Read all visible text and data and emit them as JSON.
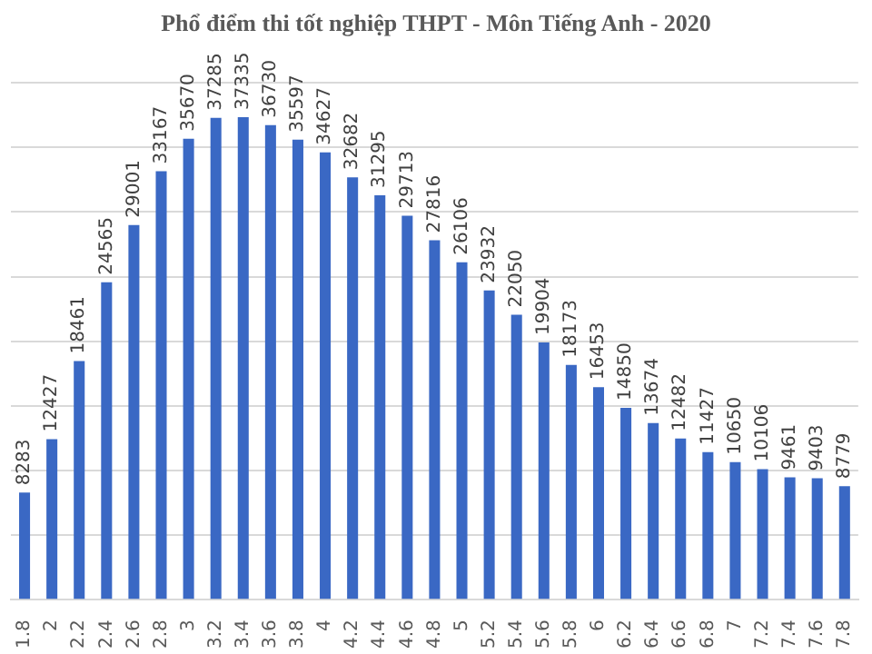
{
  "chart_data": {
    "type": "bar",
    "title": "Phổ điểm thi tốt nghiệp THPT - Môn Tiếng Anh - 2020",
    "categories": [
      "1.8",
      "2",
      "2.2",
      "2.4",
      "2.6",
      "2.8",
      "3",
      "3.2",
      "3.4",
      "3.6",
      "3.8",
      "4",
      "4.2",
      "4.4",
      "4.6",
      "4.8",
      "5",
      "5.2",
      "5.4",
      "5.6",
      "5.8",
      "6",
      "6.2",
      "6.4",
      "6.6",
      "6.8",
      "7",
      "7.2",
      "7.4",
      "7.6",
      "7.8"
    ],
    "values": [
      8283,
      12427,
      18461,
      24565,
      29001,
      33167,
      35670,
      37285,
      37335,
      36730,
      35597,
      34627,
      32682,
      31295,
      29713,
      27816,
      26106,
      23932,
      22050,
      19904,
      18173,
      16453,
      14850,
      13674,
      12482,
      11427,
      10650,
      10106,
      9461,
      9403,
      8779
    ],
    "color": "#3a68c4",
    "ylim": [
      0,
      40000
    ],
    "yticks": [
      {
        "value": 0,
        "label": null
      },
      {
        "value": 5000,
        "label": null
      },
      {
        "value": 10000,
        "label": null
      },
      {
        "value": 15000,
        "label": null
      },
      {
        "value": 20000,
        "label": null
      },
      {
        "value": 25000,
        "label": null
      },
      {
        "value": 30000,
        "label": null
      },
      {
        "value": 35000,
        "label": null
      },
      {
        "value": 40000,
        "label": null
      }
    ],
    "tick_labels": "x",
    "grid": "y",
    "data_labels": true
  }
}
